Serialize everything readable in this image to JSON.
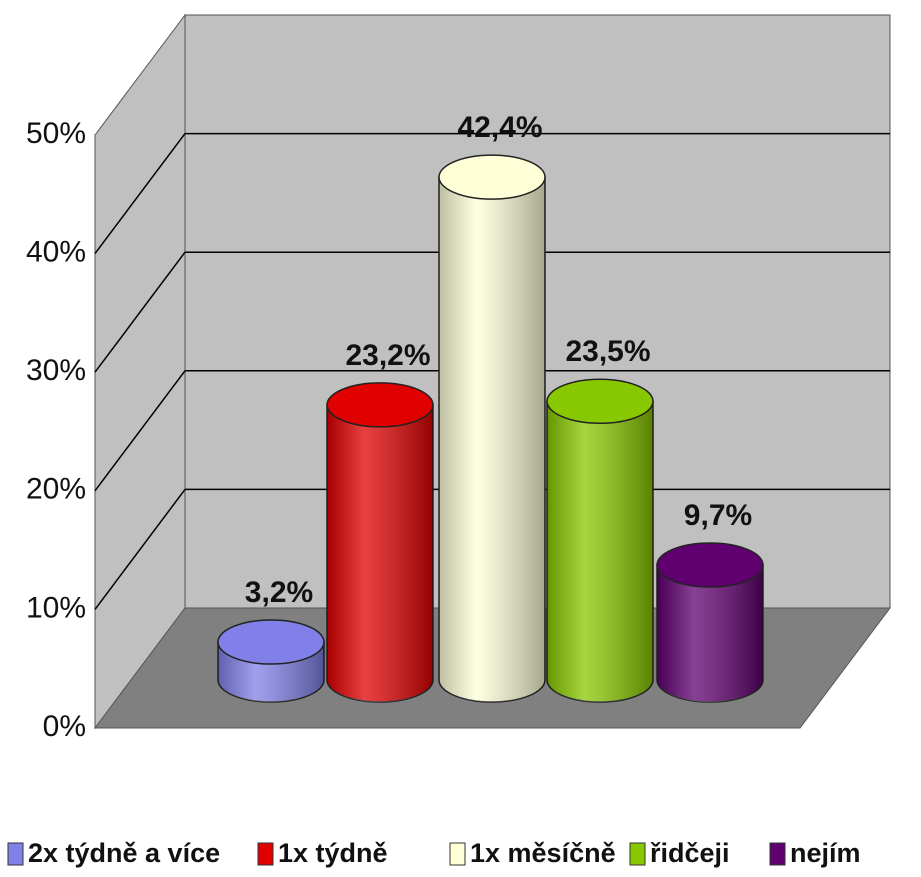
{
  "chart_data": {
    "type": "bar",
    "ylim": [
      0,
      50
    ],
    "yticks": [
      {
        "value": 0,
        "label": "0%"
      },
      {
        "value": 10,
        "label": "10%"
      },
      {
        "value": 20,
        "label": "20%"
      },
      {
        "value": 30,
        "label": "30%"
      },
      {
        "value": 40,
        "label": "40%"
      },
      {
        "value": 50,
        "label": "50%"
      }
    ],
    "grid": true,
    "legend": "bottom",
    "series": [
      {
        "name": "2x týdně a více",
        "color": "#8080e8",
        "values": [
          3.2
        ],
        "value_labels": [
          "3,2%"
        ]
      },
      {
        "name": "1x týdně",
        "color": "#e00000",
        "values": [
          23.2
        ],
        "value_labels": [
          "23,2%"
        ]
      },
      {
        "name": "1x měsíčně",
        "color": "#ffffd8",
        "values": [
          42.4
        ],
        "value_labels": [
          "42,4%"
        ]
      },
      {
        "name": "řidčeji",
        "color": "#88c800",
        "values": [
          23.5
        ],
        "value_labels": [
          "23,5%"
        ]
      },
      {
        "name": "nejím",
        "color": "#600070",
        "values": [
          9.7
        ],
        "value_labels": [
          "9,7%"
        ]
      }
    ]
  }
}
